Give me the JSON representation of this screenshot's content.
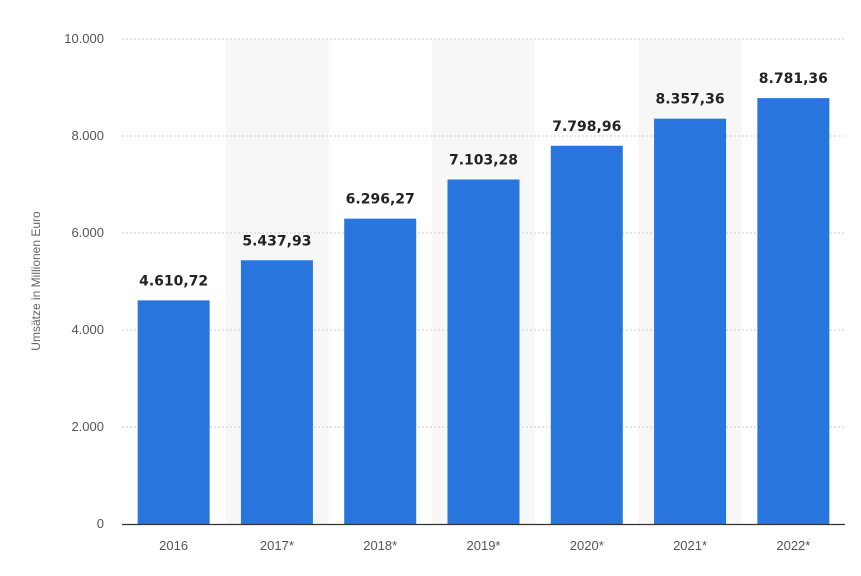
{
  "chart_data": {
    "type": "bar",
    "title": "",
    "xlabel": "",
    "ylabel": "Umsätze in Millionen Euro",
    "ylim": [
      0,
      10000
    ],
    "grid": true,
    "categories": [
      "2016",
      "2017*",
      "2018*",
      "2019*",
      "2020*",
      "2021*",
      "2022*"
    ],
    "values": [
      4610.72,
      5437.93,
      6296.27,
      7103.28,
      7798.96,
      8357.36,
      8781.36
    ],
    "value_labels": [
      "4.610,72",
      "5.437,93",
      "6.296,27",
      "7.103,28",
      "7.798,96",
      "8.357,36",
      "8.781,36"
    ],
    "y_ticks": [
      0,
      2000,
      4000,
      6000,
      8000,
      10000
    ],
    "y_tick_labels": [
      "0",
      "2.000",
      "4.000",
      "6.000",
      "8.000",
      "10.000"
    ],
    "colors": {
      "bar": "#2876dd",
      "band": "#f7f7f7",
      "grid": "#cfcfcf",
      "axis": "#333333"
    }
  }
}
